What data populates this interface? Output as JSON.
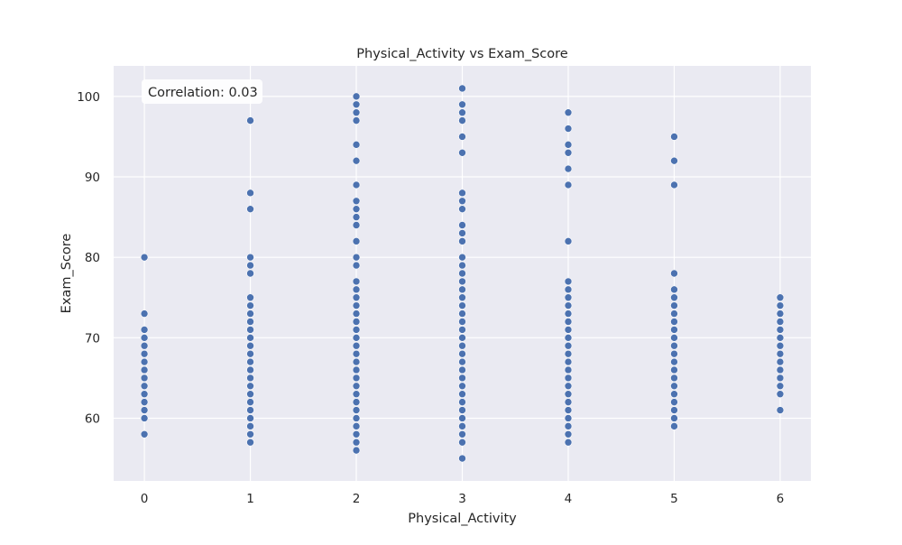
{
  "chart_data": {
    "type": "scatter",
    "title": "Physical_Activity vs Exam_Score",
    "xlabel": "Physical_Activity",
    "ylabel": "Exam_Score",
    "annotation": "Correlation: 0.03",
    "xlim": [
      -0.29,
      6.29
    ],
    "ylim": [
      52.2,
      103.8
    ],
    "x_ticks": [
      0,
      1,
      2,
      3,
      4,
      5,
      6
    ],
    "y_ticks": [
      60,
      70,
      80,
      90,
      100
    ],
    "grid": true,
    "colors": {
      "background": "#eaeaf2",
      "grid": "#ffffff",
      "marker": "#4c72b0",
      "marker_edge": "#ffffff",
      "annotation_box": "#ffffff",
      "text": "#262626"
    },
    "series": [
      {
        "points": [
          [
            0,
            58
          ],
          [
            0,
            60
          ],
          [
            0,
            61
          ],
          [
            0,
            62
          ],
          [
            0,
            63
          ],
          [
            0,
            64
          ],
          [
            0,
            65
          ],
          [
            0,
            66
          ],
          [
            0,
            67
          ],
          [
            0,
            68
          ],
          [
            0,
            69
          ],
          [
            0,
            70
          ],
          [
            0,
            71
          ],
          [
            0,
            73
          ],
          [
            0,
            80
          ],
          [
            1,
            57
          ],
          [
            1,
            58
          ],
          [
            1,
            59
          ],
          [
            1,
            60
          ],
          [
            1,
            61
          ],
          [
            1,
            62
          ],
          [
            1,
            63
          ],
          [
            1,
            64
          ],
          [
            1,
            65
          ],
          [
            1,
            66
          ],
          [
            1,
            67
          ],
          [
            1,
            68
          ],
          [
            1,
            69
          ],
          [
            1,
            70
          ],
          [
            1,
            71
          ],
          [
            1,
            72
          ],
          [
            1,
            73
          ],
          [
            1,
            74
          ],
          [
            1,
            75
          ],
          [
            1,
            78
          ],
          [
            1,
            79
          ],
          [
            1,
            80
          ],
          [
            1,
            86
          ],
          [
            1,
            88
          ],
          [
            1,
            97
          ],
          [
            2,
            56
          ],
          [
            2,
            57
          ],
          [
            2,
            58
          ],
          [
            2,
            59
          ],
          [
            2,
            60
          ],
          [
            2,
            61
          ],
          [
            2,
            62
          ],
          [
            2,
            63
          ],
          [
            2,
            64
          ],
          [
            2,
            65
          ],
          [
            2,
            66
          ],
          [
            2,
            67
          ],
          [
            2,
            68
          ],
          [
            2,
            69
          ],
          [
            2,
            70
          ],
          [
            2,
            71
          ],
          [
            2,
            72
          ],
          [
            2,
            73
          ],
          [
            2,
            74
          ],
          [
            2,
            75
          ],
          [
            2,
            76
          ],
          [
            2,
            77
          ],
          [
            2,
            79
          ],
          [
            2,
            80
          ],
          [
            2,
            82
          ],
          [
            2,
            84
          ],
          [
            2,
            85
          ],
          [
            2,
            86
          ],
          [
            2,
            87
          ],
          [
            2,
            89
          ],
          [
            2,
            92
          ],
          [
            2,
            94
          ],
          [
            2,
            97
          ],
          [
            2,
            98
          ],
          [
            2,
            99
          ],
          [
            2,
            100
          ],
          [
            3,
            55
          ],
          [
            3,
            57
          ],
          [
            3,
            58
          ],
          [
            3,
            59
          ],
          [
            3,
            60
          ],
          [
            3,
            61
          ],
          [
            3,
            62
          ],
          [
            3,
            63
          ],
          [
            3,
            64
          ],
          [
            3,
            65
          ],
          [
            3,
            66
          ],
          [
            3,
            67
          ],
          [
            3,
            68
          ],
          [
            3,
            69
          ],
          [
            3,
            70
          ],
          [
            3,
            71
          ],
          [
            3,
            72
          ],
          [
            3,
            73
          ],
          [
            3,
            74
          ],
          [
            3,
            75
          ],
          [
            3,
            76
          ],
          [
            3,
            77
          ],
          [
            3,
            78
          ],
          [
            3,
            79
          ],
          [
            3,
            80
          ],
          [
            3,
            82
          ],
          [
            3,
            83
          ],
          [
            3,
            84
          ],
          [
            3,
            86
          ],
          [
            3,
            87
          ],
          [
            3,
            88
          ],
          [
            3,
            93
          ],
          [
            3,
            95
          ],
          [
            3,
            97
          ],
          [
            3,
            98
          ],
          [
            3,
            99
          ],
          [
            3,
            101
          ],
          [
            4,
            57
          ],
          [
            4,
            58
          ],
          [
            4,
            59
          ],
          [
            4,
            60
          ],
          [
            4,
            61
          ],
          [
            4,
            62
          ],
          [
            4,
            63
          ],
          [
            4,
            64
          ],
          [
            4,
            65
          ],
          [
            4,
            66
          ],
          [
            4,
            67
          ],
          [
            4,
            68
          ],
          [
            4,
            69
          ],
          [
            4,
            70
          ],
          [
            4,
            71
          ],
          [
            4,
            72
          ],
          [
            4,
            73
          ],
          [
            4,
            74
          ],
          [
            4,
            75
          ],
          [
            4,
            76
          ],
          [
            4,
            77
          ],
          [
            4,
            82
          ],
          [
            4,
            89
          ],
          [
            4,
            91
          ],
          [
            4,
            93
          ],
          [
            4,
            94
          ],
          [
            4,
            96
          ],
          [
            4,
            98
          ],
          [
            5,
            59
          ],
          [
            5,
            60
          ],
          [
            5,
            61
          ],
          [
            5,
            62
          ],
          [
            5,
            63
          ],
          [
            5,
            64
          ],
          [
            5,
            65
          ],
          [
            5,
            66
          ],
          [
            5,
            67
          ],
          [
            5,
            68
          ],
          [
            5,
            69
          ],
          [
            5,
            70
          ],
          [
            5,
            71
          ],
          [
            5,
            72
          ],
          [
            5,
            73
          ],
          [
            5,
            74
          ],
          [
            5,
            75
          ],
          [
            5,
            76
          ],
          [
            5,
            78
          ],
          [
            5,
            89
          ],
          [
            5,
            92
          ],
          [
            5,
            95
          ],
          [
            6,
            61
          ],
          [
            6,
            63
          ],
          [
            6,
            64
          ],
          [
            6,
            65
          ],
          [
            6,
            66
          ],
          [
            6,
            67
          ],
          [
            6,
            68
          ],
          [
            6,
            69
          ],
          [
            6,
            70
          ],
          [
            6,
            71
          ],
          [
            6,
            72
          ],
          [
            6,
            73
          ],
          [
            6,
            74
          ],
          [
            6,
            75
          ]
        ]
      }
    ]
  }
}
